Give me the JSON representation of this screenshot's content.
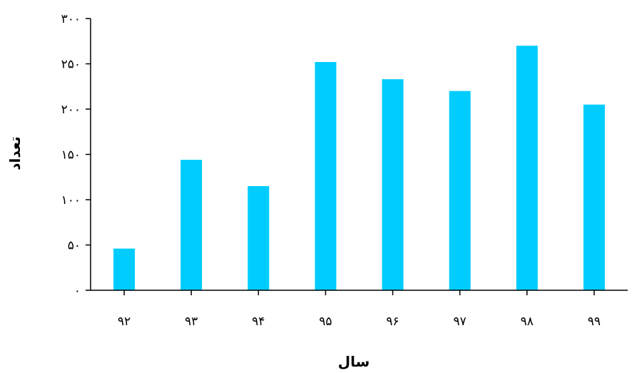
{
  "chart_data": {
    "type": "bar",
    "categories": [
      "۹۲",
      "۹۳",
      "۹۴",
      "۹۵",
      "۹۶",
      "۹۷",
      "۹۸",
      "۹۹"
    ],
    "values": [
      46,
      144,
      115,
      252,
      233,
      220,
      270,
      205
    ],
    "xlabel": "سال",
    "ylabel": "تعداد",
    "ylim": [
      0,
      300
    ],
    "yticks": [
      {
        "value": 0,
        "label": "۰"
      },
      {
        "value": 50,
        "label": "۵۰"
      },
      {
        "value": 100,
        "label": "۱۰۰"
      },
      {
        "value": 150,
        "label": "۱۵۰"
      },
      {
        "value": 200,
        "label": "۲۰۰"
      },
      {
        "value": 250,
        "label": "۲۵۰"
      },
      {
        "value": 300,
        "label": "۳۰۰"
      }
    ],
    "grid": false,
    "legend": "none",
    "bar_color": "#00CCFF",
    "axis_color": "#000000"
  }
}
